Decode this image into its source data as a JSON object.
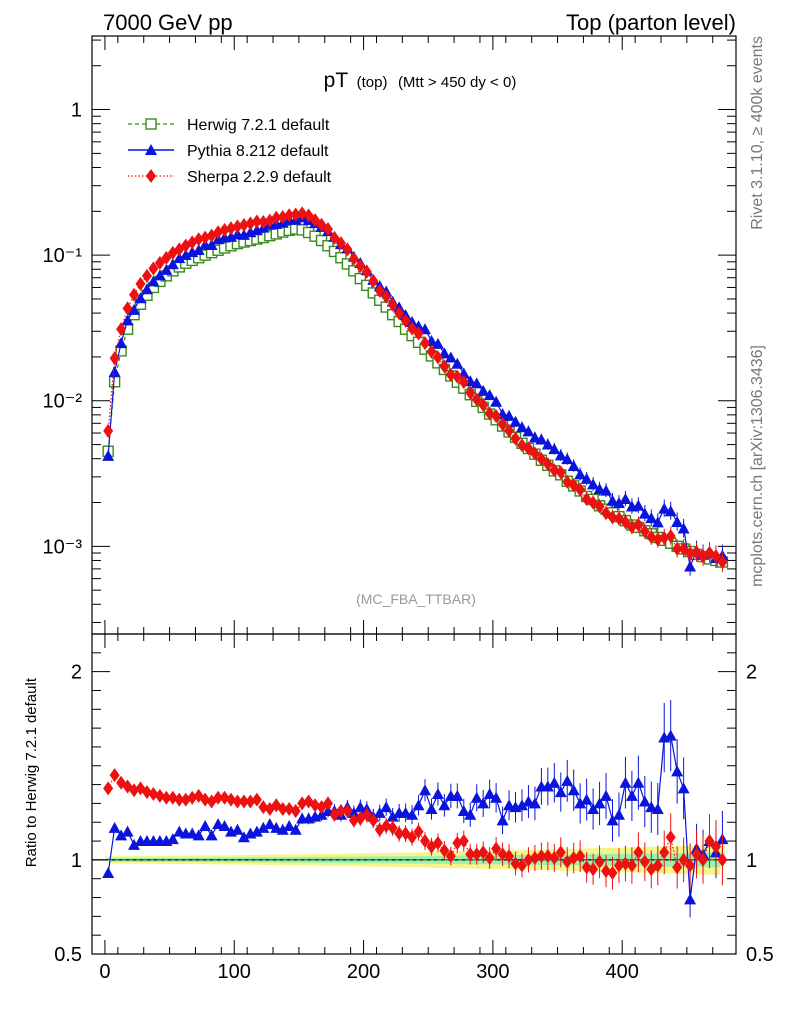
{
  "header": {
    "left": "7000 GeV pp",
    "right": "Top (parton level)"
  },
  "side": {
    "rivet": "Rivet 3.1.10, ≥ 400k events",
    "mcplots": "mcplots.cern.ch [arXiv:1306.3436]"
  },
  "chart_data": {
    "type": "line",
    "title_main": "pT",
    "title_sub": "(top)",
    "title_cuts": "(Mtt > 450 dy < 0)",
    "watermark": "(MC_FBA_TTBAR)",
    "ratio_ylabel": "Ratio to Herwig 7.2.1 default",
    "log_y": true,
    "main_ylim": [
      0.00025,
      3.2
    ],
    "ratio_ylim": [
      0.5,
      2.2
    ],
    "xlim": [
      -10,
      488
    ],
    "x_ticks": [
      0,
      100,
      200,
      300,
      400
    ],
    "x_tick_labels": [
      "0",
      "100",
      "200",
      "300",
      "400"
    ],
    "y_tick_labels": [
      "1",
      "10⁻¹",
      "10⁻²",
      "10⁻³"
    ],
    "ratio_tick_labels": [
      "2",
      "1",
      "0.5"
    ],
    "legend_position": "top-left",
    "x": [
      2.5,
      7.5,
      12.5,
      17.5,
      22.5,
      27.5,
      32.5,
      37.5,
      42.5,
      47.5,
      52.5,
      57.5,
      62.5,
      67.5,
      72.5,
      77.5,
      82.5,
      87.5,
      92.5,
      97.5,
      102.5,
      107.5,
      112.5,
      117.5,
      122.5,
      127.5,
      132.5,
      137.5,
      142.5,
      147.5,
      152.5,
      157.5,
      162.5,
      167.5,
      172.5,
      177.5,
      182.5,
      187.5,
      192.5,
      197.5,
      202.5,
      207.5,
      212.5,
      217.5,
      222.5,
      227.5,
      232.5,
      237.5,
      242.5,
      247.5,
      252.5,
      257.5,
      262.5,
      267.5,
      272.5,
      277.5,
      282.5,
      287.5,
      292.5,
      297.5,
      302.5,
      307.5,
      312.5,
      317.5,
      322.5,
      327.5,
      332.5,
      337.5,
      342.5,
      347.5,
      352.5,
      357.5,
      362.5,
      367.5,
      372.5,
      377.5,
      382.5,
      387.5,
      392.5,
      397.5,
      402.5,
      407.5,
      412.5,
      417.5,
      422.5,
      427.5,
      432.5,
      437.5,
      442.5,
      447.5,
      452.5,
      457.5,
      462.5,
      467.5,
      472.5,
      477.5
    ],
    "series": [
      {
        "name": "Herwig 7.2.1 default",
        "color": "#3a8a1c",
        "marker": "open-square",
        "line": "dashed",
        "values": [
          0.0045,
          0.0135,
          0.022,
          0.031,
          0.039,
          0.046,
          0.053,
          0.06,
          0.066,
          0.072,
          0.078,
          0.083,
          0.088,
          0.092,
          0.096,
          0.1,
          0.104,
          0.108,
          0.112,
          0.116,
          0.12,
          0.123,
          0.126,
          0.129,
          0.132,
          0.136,
          0.14,
          0.144,
          0.148,
          0.151,
          0.149,
          0.143,
          0.135,
          0.126,
          0.116,
          0.106,
          0.096,
          0.087,
          0.078,
          0.069,
          0.062,
          0.055,
          0.049,
          0.044,
          0.039,
          0.035,
          0.031,
          0.028,
          0.0252,
          0.0226,
          0.0203,
          0.0182,
          0.0164,
          0.0148,
          0.0134,
          0.0122,
          0.011,
          0.0099,
          0.009,
          0.0081,
          0.0074,
          0.0067,
          0.0061,
          0.0056,
          0.0051,
          0.0047,
          0.0043,
          0.0039,
          0.0036,
          0.0033,
          0.0031,
          0.0028,
          0.0026,
          0.0024,
          0.0022,
          0.0021,
          0.0019,
          0.0018,
          0.0017,
          0.0016,
          0.0015,
          0.0014,
          0.00135,
          0.00128,
          0.00122,
          0.00115,
          0.0011,
          0.00105,
          0.001,
          0.00096,
          0.00092,
          0.00088,
          0.00085,
          0.00082,
          0.0008,
          0.00078
        ],
        "ratio": [
          1,
          1,
          1,
          1,
          1,
          1,
          1,
          1,
          1,
          1,
          1,
          1,
          1,
          1,
          1,
          1,
          1,
          1,
          1,
          1,
          1,
          1,
          1,
          1,
          1,
          1,
          1,
          1,
          1,
          1,
          1,
          1,
          1,
          1,
          1,
          1,
          1,
          1,
          1,
          1,
          1,
          1,
          1,
          1,
          1,
          1,
          1,
          1,
          1,
          1,
          1,
          1,
          1,
          1,
          1,
          1,
          1,
          1,
          1,
          1,
          1,
          1,
          1,
          1,
          1,
          1,
          1,
          1,
          1,
          1,
          1,
          1,
          1,
          1,
          1,
          1,
          1,
          1,
          1,
          1,
          1,
          1,
          1,
          1,
          1,
          1,
          1,
          1,
          1,
          1,
          1,
          1,
          1,
          1,
          1,
          1
        ]
      },
      {
        "name": "Pythia 8.212 default",
        "color": "#0a14dc",
        "marker": "filled-triangle",
        "line": "solid",
        "ratio": [
          0.93,
          1.17,
          1.13,
          1.15,
          1.08,
          1.1,
          1.1,
          1.1,
          1.1,
          1.1,
          1.11,
          1.15,
          1.14,
          1.14,
          1.13,
          1.18,
          1.13,
          1.19,
          1.18,
          1.15,
          1.16,
          1.12,
          1.14,
          1.15,
          1.17,
          1.19,
          1.17,
          1.16,
          1.18,
          1.16,
          1.22,
          1.22,
          1.23,
          1.24,
          1.26,
          1.26,
          1.24,
          1.28,
          1.25,
          1.28,
          1.27,
          1.23,
          1.25,
          1.28,
          1.23,
          1.25,
          1.25,
          1.24,
          1.29,
          1.37,
          1.27,
          1.35,
          1.29,
          1.34,
          1.34,
          1.26,
          1.24,
          1.33,
          1.3,
          1.35,
          1.33,
          1.21,
          1.29,
          1.28,
          1.29,
          1.31,
          1.3,
          1.39,
          1.39,
          1.41,
          1.36,
          1.42,
          1.37,
          1.3,
          1.32,
          1.27,
          1.3,
          1.34,
          1.21,
          1.24,
          1.41,
          1.34,
          1.41,
          1.31,
          1.28,
          1.27,
          1.65,
          1.66,
          1.47,
          1.38,
          0.79,
          1.06,
          1.03,
          1.1,
          1.04,
          1.11
        ]
      },
      {
        "name": "Sherpa 2.2.9 default",
        "color": "#ee1111",
        "marker": "filled-diamond",
        "line": "dotted",
        "ratio": [
          1.38,
          1.45,
          1.41,
          1.39,
          1.37,
          1.38,
          1.36,
          1.35,
          1.34,
          1.33,
          1.33,
          1.32,
          1.32,
          1.33,
          1.34,
          1.32,
          1.31,
          1.33,
          1.33,
          1.32,
          1.31,
          1.31,
          1.31,
          1.32,
          1.28,
          1.27,
          1.29,
          1.27,
          1.27,
          1.26,
          1.3,
          1.31,
          1.29,
          1.28,
          1.3,
          1.24,
          1.26,
          1.26,
          1.21,
          1.22,
          1.24,
          1.21,
          1.16,
          1.18,
          1.17,
          1.14,
          1.14,
          1.12,
          1.15,
          1.1,
          1.07,
          1.09,
          1.05,
          1.02,
          1.09,
          1.1,
          1.03,
          1.03,
          1.04,
          1.01,
          1.06,
          1.03,
          1.02,
          0.98,
          0.97,
          1.0,
          1.01,
          1.02,
          1.02,
          1.01,
          1.04,
          0.99,
          1.01,
          1.02,
          0.96,
          0.95,
          0.99,
          0.94,
          0.93,
          0.97,
          0.98,
          0.97,
          1.04,
          0.99,
          0.95,
          0.97,
          1.04,
          1.12,
          0.96,
          1.0,
          0.97,
          1.03,
          1.0,
          1.1,
          1.07,
          1.0
        ]
      }
    ]
  }
}
